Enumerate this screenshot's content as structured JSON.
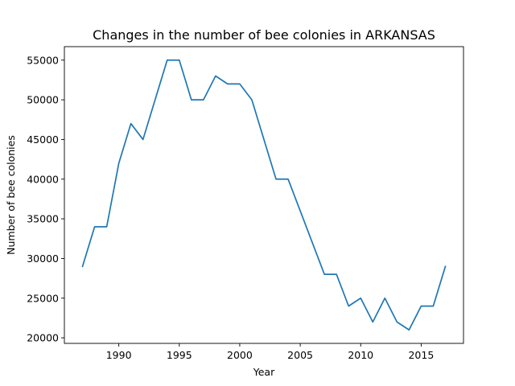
{
  "chart_data": {
    "type": "line",
    "title": "Changes in the number of bee colonies in ARKANSAS",
    "xlabel": "Year",
    "ylabel": "Number of bee colonies",
    "xlim": [
      1985.5,
      2018.5
    ],
    "ylim": [
      19300,
      56700
    ],
    "xticks": [
      1990,
      1995,
      2000,
      2005,
      2010,
      2015
    ],
    "yticks": [
      20000,
      25000,
      30000,
      35000,
      40000,
      45000,
      50000,
      55000
    ],
    "grid": false,
    "series": [
      {
        "color": "#1f77b4",
        "x": [
          1987,
          1988,
          1989,
          1990,
          1991,
          1992,
          1993,
          1994,
          1995,
          1996,
          1997,
          1998,
          1999,
          2000,
          2001,
          2002,
          2003,
          2004,
          2005,
          2006,
          2007,
          2008,
          2009,
          2010,
          2011,
          2012,
          2013,
          2014,
          2015,
          2016,
          2017
        ],
        "values": [
          29000,
          34000,
          34000,
          42000,
          47000,
          45000,
          50000,
          55000,
          55000,
          50000,
          50000,
          53000,
          52000,
          52000,
          50000,
          45000,
          40000,
          40000,
          36000,
          32000,
          28000,
          28000,
          24000,
          25000,
          22000,
          25000,
          22000,
          21000,
          24000,
          24000,
          29000
        ]
      }
    ]
  }
}
